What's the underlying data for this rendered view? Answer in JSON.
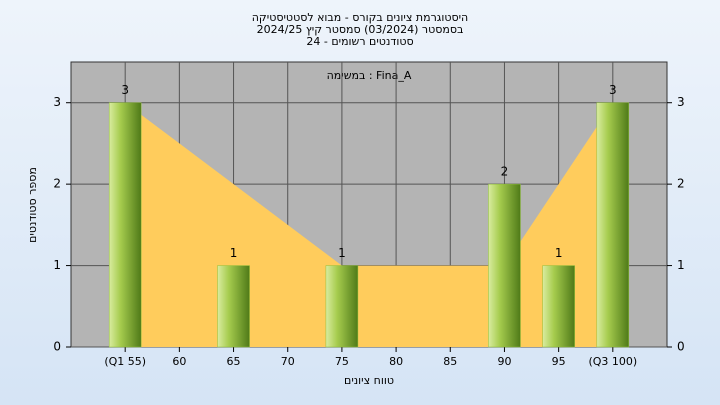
{
  "chart_data": {
    "type": "bar",
    "title": "היסטוגרמת ציונים בקורס - מבוא לסטטיסטיקה",
    "subtitle": [
      "בסמסטר  (03/2024)  סמסטר קיץ 2024/25",
      "סטודנטים רשומים - 24"
    ],
    "annotation": "במשימה : Fina_A",
    "xlabel": "טווח ציונים",
    "ylabel": "מספר סטודנטים",
    "x": [
      55,
      60,
      65,
      70,
      75,
      80,
      85,
      90,
      95,
      100
    ],
    "xlim": [
      50,
      105
    ],
    "xticks": [
      {
        "value": 55,
        "label": "(Q1 55)"
      },
      60,
      65,
      70,
      75,
      80,
      85,
      90,
      95,
      {
        "value": 100,
        "label": "(Q3 100)"
      }
    ],
    "ylim": [
      0,
      3.5
    ],
    "yticks": [
      0,
      1,
      2,
      3
    ],
    "grid": true,
    "series": [
      {
        "type": "area",
        "color": "#ffcc5c",
        "values": [
          3,
          2.5,
          2,
          1.5,
          1,
          1,
          1,
          1,
          2,
          3
        ]
      },
      {
        "type": "bar",
        "color": "#8fbf3a",
        "values": [
          3,
          null,
          1,
          null,
          1,
          null,
          null,
          2,
          1,
          3
        ]
      }
    ]
  }
}
